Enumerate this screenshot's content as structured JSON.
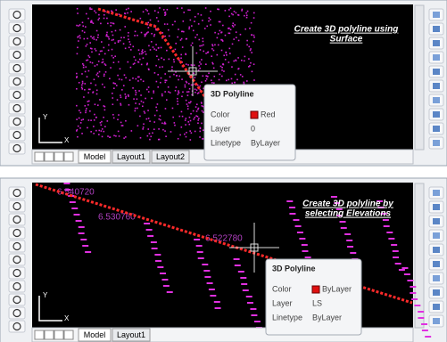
{
  "panels": [
    {
      "title_lines": [
        "Create 3D polyline using",
        "Surface"
      ],
      "tooltip": {
        "heading": "3D Polyline",
        "rows": [
          [
            "Color",
            "Red"
          ],
          [
            "Layer",
            "0"
          ],
          [
            "Linetype",
            "ByLayer"
          ]
        ]
      },
      "tabs": [
        "Model",
        "Layout1",
        "Layout2"
      ],
      "axis": [
        "Y",
        "X"
      ]
    },
    {
      "title_lines": [
        "Create 3D polyline by",
        "selecting Elevations"
      ],
      "tooltip": {
        "heading": "3D Polyline",
        "rows": [
          [
            "Color",
            "ByLayer"
          ],
          [
            "Layer",
            "LS"
          ],
          [
            "Linetype",
            "ByLayer"
          ]
        ]
      },
      "tabs": [
        "Model",
        "Layout1"
      ],
      "axis": [
        "Y",
        "X"
      ],
      "elevation_labels": [
        "6.540720",
        "6.530760",
        "6.522780"
      ]
    }
  ]
}
